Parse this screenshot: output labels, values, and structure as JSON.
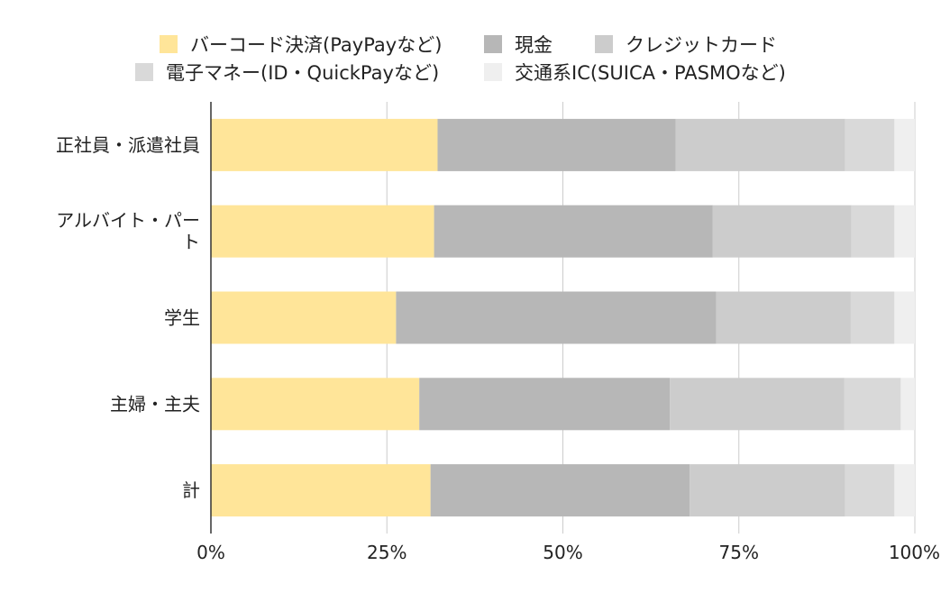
{
  "chart_data": {
    "type": "bar",
    "orientation": "horizontal",
    "stacked": "percent",
    "categories": [
      "正社員・派遣社員",
      "アルバイト・パート",
      "学生",
      "主婦・主夫",
      "計"
    ],
    "series": [
      {
        "name": "バーコード決済(PayPayなど)",
        "color": "#ffe599",
        "values": [
          32.2,
          31.7,
          26.3,
          29.6,
          31.2
        ]
      },
      {
        "name": "現金",
        "color": "#b7b7b7",
        "values": [
          33.8,
          39.6,
          45.5,
          35.6,
          36.8
        ]
      },
      {
        "name": "クレジットカード",
        "color": "#cccccc",
        "values": [
          24.1,
          19.7,
          19.1,
          24.8,
          22.1
        ]
      },
      {
        "name": "電子マネー(ID・QuickPayなど)",
        "color": "#d9d9d9",
        "values": [
          7.0,
          6.1,
          6.2,
          8.0,
          7.0
        ]
      },
      {
        "name": "交通系IC(SUICA・PASMOなど)",
        "color": "#efefef",
        "values": [
          2.9,
          2.9,
          2.9,
          2.0,
          2.9
        ]
      }
    ],
    "x_ticks": [
      "0%",
      "25%",
      "50%",
      "75%",
      "100%"
    ],
    "xlim": [
      0,
      100
    ],
    "grid": true,
    "legend_position": "top"
  }
}
